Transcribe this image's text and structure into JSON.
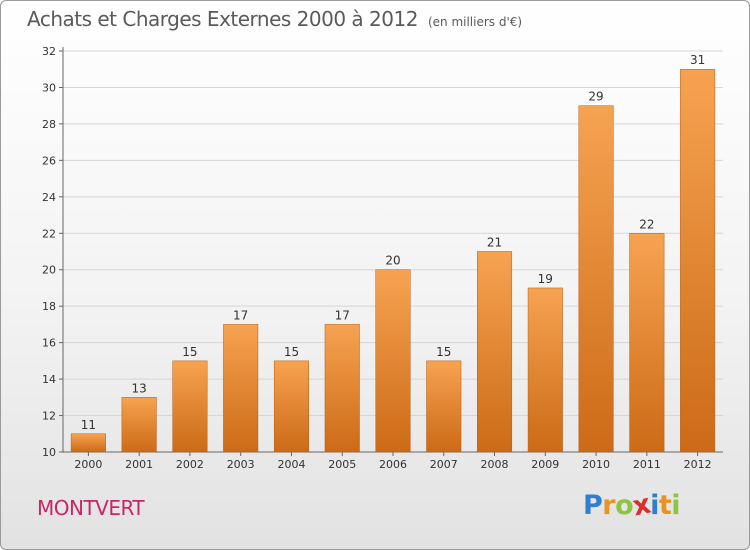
{
  "header": {
    "title": "Achats et Charges Externes 2000 à 2012",
    "unit": "(en milliers d'€)"
  },
  "footer": {
    "commune": "MONTVERT",
    "logo_letters": [
      "P",
      "r",
      "o",
      "x",
      "i",
      "t",
      "i"
    ],
    "logo_colors": [
      "#2f7fd1",
      "#e8951f",
      "#8cc63f",
      "#d9302a",
      "#2f7fd1",
      "#e8951f",
      "#8cc63f"
    ]
  },
  "colors": {
    "bar_top": "#f6a351",
    "bar_bottom": "#cc6a17",
    "grid": "#d6d6d6",
    "axis": "#666666",
    "commune": "#c8266a"
  },
  "chart_data": {
    "type": "bar",
    "title": "Achats et Charges Externes 2000 à 2012",
    "subtitle": "(en milliers d'€)",
    "categories": [
      "2000",
      "2001",
      "2002",
      "2003",
      "2004",
      "2005",
      "2006",
      "2007",
      "2008",
      "2009",
      "2010",
      "2011",
      "2012"
    ],
    "values": [
      11,
      13,
      15,
      17,
      15,
      17,
      20,
      15,
      21,
      19,
      29,
      22,
      31
    ],
    "ylim": [
      10,
      32
    ],
    "yticks": [
      10,
      12,
      14,
      16,
      18,
      20,
      22,
      24,
      26,
      28,
      30,
      32
    ],
    "grid": true,
    "data_labels": true
  }
}
